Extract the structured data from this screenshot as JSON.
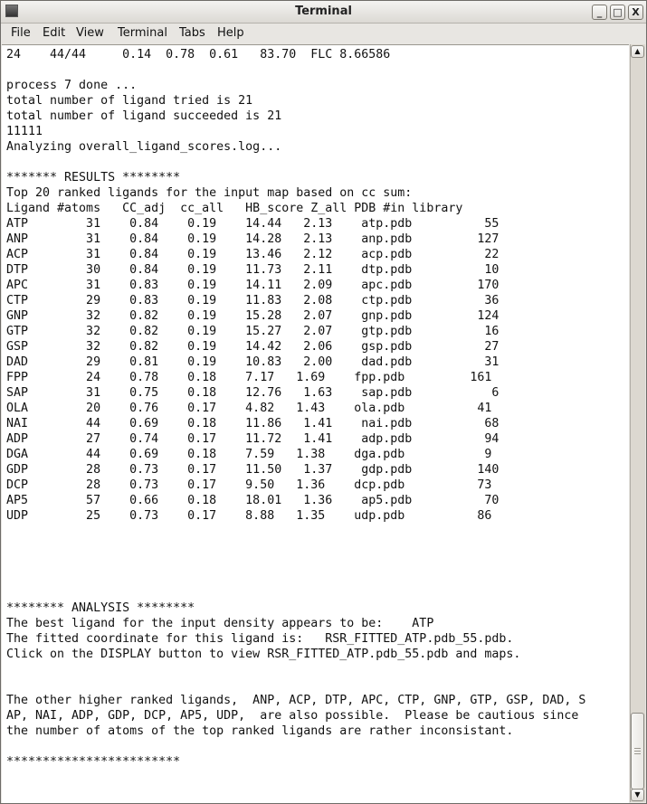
{
  "window": {
    "title": "Terminal",
    "controls": [
      "minimize",
      "maximize",
      "close"
    ]
  },
  "menu": [
    {
      "label": "File",
      "mnemonic": "F"
    },
    {
      "label": "Edit",
      "mnemonic": "E"
    },
    {
      "label": "View",
      "mnemonic": "V"
    },
    {
      "label": "Terminal",
      "mnemonic": "T"
    },
    {
      "label": "Tabs",
      "mnemonic": "b"
    },
    {
      "label": "Help",
      "mnemonic": "H"
    }
  ],
  "terminal": {
    "pre_lines": [
      "24    44/44     0.14  0.78  0.61   83.70  FLC 8.66586",
      "",
      "process 7 done ...",
      "total number of ligand tried is 21",
      "total number of ligand succeeded is 21",
      "11111",
      "Analyzing overall_ligand_scores.log...",
      "",
      "******* RESULTS ********",
      "Top 20 ranked ligands for the input map based on cc sum:",
      "Ligand #atoms   CC_adj  cc_all   HB_score Z_all PDB #in library"
    ],
    "results": [
      [
        "ATP",
        "31",
        "0.84",
        "0.19",
        "14.44",
        "2.13",
        "atp.pdb",
        "55"
      ],
      [
        "ANP",
        "31",
        "0.84",
        "0.19",
        "14.28",
        "2.13",
        "anp.pdb",
        "127"
      ],
      [
        "ACP",
        "31",
        "0.84",
        "0.19",
        "13.46",
        "2.12",
        "acp.pdb",
        "22"
      ],
      [
        "DTP",
        "30",
        "0.84",
        "0.19",
        "11.73",
        "2.11",
        "dtp.pdb",
        "10"
      ],
      [
        "APC",
        "31",
        "0.83",
        "0.19",
        "14.11",
        "2.09",
        "apc.pdb",
        "170"
      ],
      [
        "CTP",
        "29",
        "0.83",
        "0.19",
        "11.83",
        "2.08",
        "ctp.pdb",
        "36"
      ],
      [
        "GNP",
        "32",
        "0.82",
        "0.19",
        "15.28",
        "2.07",
        "gnp.pdb",
        "124"
      ],
      [
        "GTP",
        "32",
        "0.82",
        "0.19",
        "15.27",
        "2.07",
        "gtp.pdb",
        "16"
      ],
      [
        "GSP",
        "32",
        "0.82",
        "0.19",
        "14.42",
        "2.06",
        "gsp.pdb",
        "27"
      ],
      [
        "DAD",
        "29",
        "0.81",
        "0.19",
        "10.83",
        "2.00",
        "dad.pdb",
        "31"
      ],
      [
        "FPP",
        "24",
        "0.78",
        "0.18",
        "7.17",
        "1.69",
        "fpp.pdb",
        "161"
      ],
      [
        "SAP",
        "31",
        "0.75",
        "0.18",
        "12.76",
        "1.63",
        "sap.pdb",
        "6"
      ],
      [
        "OLA",
        "20",
        "0.76",
        "0.17",
        "4.82",
        "1.43",
        "ola.pdb",
        "41"
      ],
      [
        "NAI",
        "44",
        "0.69",
        "0.18",
        "11.86",
        "1.41",
        "nai.pdb",
        "68"
      ],
      [
        "ADP",
        "27",
        "0.74",
        "0.17",
        "11.72",
        "1.41",
        "adp.pdb",
        "94"
      ],
      [
        "DGA",
        "44",
        "0.69",
        "0.18",
        "7.59",
        "1.38",
        "dga.pdb",
        "9"
      ],
      [
        "GDP",
        "28",
        "0.73",
        "0.17",
        "11.50",
        "1.37",
        "gdp.pdb",
        "140"
      ],
      [
        "DCP",
        "28",
        "0.73",
        "0.17",
        "9.50",
        "1.36",
        "dcp.pdb",
        "73"
      ],
      [
        "AP5",
        "57",
        "0.66",
        "0.18",
        "18.01",
        "1.36",
        "ap5.pdb",
        "70"
      ],
      [
        "UDP",
        "25",
        "0.73",
        "0.17",
        "8.88",
        "1.35",
        "udp.pdb",
        "86"
      ]
    ],
    "post_lines": [
      "",
      "",
      "",
      "",
      "",
      "******** ANALYSIS ********",
      "The best ligand for the input density appears to be:    ATP",
      "The fitted coordinate for this ligand is:   RSR_FITTED_ATP.pdb_55.pdb.",
      "Click on the DISPLAY button to view RSR_FITTED_ATP.pdb_55.pdb and maps.",
      "",
      "",
      "The other higher ranked ligands,  ANP, ACP, DTP, APC, CTP, GNP, GTP, GSP, DAD, S",
      "AP, NAI, ADP, GDP, DCP, AP5, UDP,  are also possible.  Please be cautious since",
      "the number of atoms of the top ranked ligands are rather inconsistant.",
      "",
      "************************"
    ]
  },
  "scrollbar": {
    "position": "bottom"
  }
}
